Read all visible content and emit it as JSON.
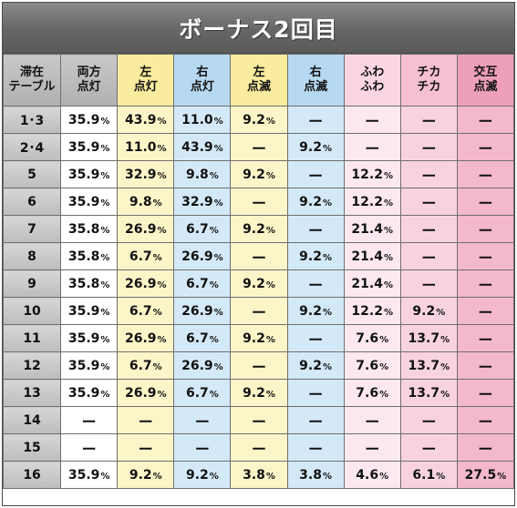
{
  "title": "ボーナス2回目",
  "headers": [
    [
      "滞在",
      "テーブル"
    ],
    [
      "両方",
      "点灯"
    ],
    [
      "左",
      "点灯"
    ],
    [
      "右",
      "点灯"
    ],
    [
      "左",
      "点滅"
    ],
    [
      "右",
      "点滅"
    ],
    [
      "ふわ",
      "ふわ"
    ],
    [
      "チカ",
      "チカ"
    ],
    [
      "交互",
      "点滅"
    ]
  ],
  "colors": {
    "white": "#ffffff",
    "yellow": "#fcf5c8",
    "blue": "#d4e9f7",
    "light_pink": "#fde8ef",
    "pink": "#f8d3df",
    "hot_pink": "#f3b8cc",
    "title_gray": "#666666"
  },
  "dash": "ー",
  "percent_sign": "%",
  "rows": [
    {
      "label": "1･3",
      "values": [
        "35.9",
        "43.9",
        "11.0",
        "9.2",
        null,
        null,
        null,
        null
      ]
    },
    {
      "label": "2･4",
      "values": [
        "35.9",
        "11.0",
        "43.9",
        null,
        "9.2",
        null,
        null,
        null
      ]
    },
    {
      "label": "5",
      "values": [
        "35.9",
        "32.9",
        "9.8",
        "9.2",
        null,
        "12.2",
        null,
        null
      ]
    },
    {
      "label": "6",
      "values": [
        "35.9",
        "9.8",
        "32.9",
        null,
        "9.2",
        "12.2",
        null,
        null
      ]
    },
    {
      "label": "7",
      "values": [
        "35.8",
        "26.9",
        "6.7",
        "9.2",
        null,
        "21.4",
        null,
        null
      ]
    },
    {
      "label": "8",
      "values": [
        "35.8",
        "6.7",
        "26.9",
        null,
        "9.2",
        "21.4",
        null,
        null
      ]
    },
    {
      "label": "9",
      "values": [
        "35.8",
        "26.9",
        "6.7",
        "9.2",
        null,
        "21.4",
        null,
        null
      ]
    },
    {
      "label": "10",
      "values": [
        "35.9",
        "6.7",
        "26.9",
        null,
        "9.2",
        "12.2",
        "9.2",
        null
      ]
    },
    {
      "label": "11",
      "values": [
        "35.9",
        "26.9",
        "6.7",
        "9.2",
        null,
        "7.6",
        "13.7",
        null
      ]
    },
    {
      "label": "12",
      "values": [
        "35.9",
        "6.7",
        "26.9",
        null,
        "9.2",
        "7.6",
        "13.7",
        null
      ]
    },
    {
      "label": "13",
      "values": [
        "35.9",
        "26.9",
        "6.7",
        "9.2",
        null,
        "7.6",
        "13.7",
        null
      ]
    },
    {
      "label": "14",
      "values": [
        null,
        null,
        null,
        null,
        null,
        null,
        null,
        null
      ]
    },
    {
      "label": "15",
      "values": [
        null,
        null,
        null,
        null,
        null,
        null,
        null,
        null
      ]
    },
    {
      "label": "16",
      "values": [
        "35.9",
        "9.2",
        "9.2",
        "3.8",
        "3.8",
        "4.6",
        "6.1",
        "27.5"
      ]
    }
  ]
}
